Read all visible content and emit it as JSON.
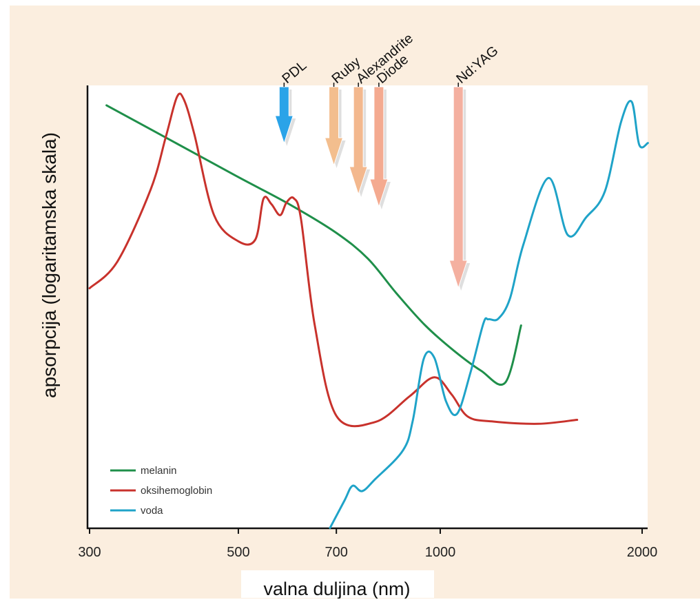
{
  "chart_data": {
    "type": "line",
    "ylabel": "apsorpcija (logaritamska skala)",
    "xlabel": "valna duljina (nm)",
    "x_scale": "log",
    "xlim": [
      300,
      2050
    ],
    "ylim": [
      0,
      100
    ],
    "y_scale": "log (unlabeled, relative)",
    "x_ticks": [
      300,
      500,
      700,
      1000,
      2000
    ],
    "grid": false,
    "legend_position": "bottom-left",
    "series": [
      {
        "name": "melanin",
        "color": "#1f8f4a",
        "x": [
          318,
          400,
          500,
          600,
          700,
          780,
          860,
          950,
          1050,
          1150,
          1250,
          1320
        ],
        "y": [
          95.5,
          87.3,
          79.3,
          72.9,
          66.7,
          60.9,
          53.1,
          45.8,
          40.0,
          35.6,
          32.9,
          45.8
        ]
      },
      {
        "name": "oksihemoglobin",
        "color": "#c8322c",
        "x": [
          300,
          330,
          370,
          390,
          405,
          415,
          430,
          460,
          500,
          530,
          545,
          560,
          577,
          590,
          605,
          620,
          650,
          700,
          800,
          900,
          980,
          1040,
          1100,
          1200,
          1400,
          1600
        ],
        "y": [
          54.2,
          60.2,
          76.5,
          88.5,
          97.4,
          96.7,
          88.9,
          70.7,
          64.8,
          65.2,
          74.4,
          73.2,
          70.7,
          73.6,
          74.5,
          69.8,
          45.8,
          25.4,
          24.0,
          29.8,
          34.1,
          30.2,
          25.2,
          24.1,
          23.6,
          24.5
        ]
      },
      {
        "name": "voda",
        "color": "#1fa3c8",
        "x": [
          685,
          720,
          740,
          765,
          800,
          880,
          910,
          945,
          980,
          1020,
          1060,
          1110,
          1160,
          1180,
          1220,
          1270,
          1330,
          1450,
          1550,
          1650,
          1760,
          1860,
          1930,
          1980,
          2040
        ],
        "y": [
          0.1,
          6.3,
          9.6,
          8.4,
          11.1,
          17.6,
          24.3,
          38.3,
          38.5,
          28.7,
          25.9,
          35.3,
          46.3,
          47.2,
          47.3,
          51.8,
          64.0,
          79.1,
          66.2,
          70.2,
          76.1,
          91.7,
          96.3,
          86.6,
          87.0
        ]
      }
    ],
    "annotations": [
      {
        "label": "PDL",
        "x": 585,
        "color": "#2aa3e8"
      },
      {
        "label": "Ruby",
        "x": 694,
        "color": "#f3be8e"
      },
      {
        "label": "Alexandrite",
        "x": 755,
        "color": "#f3b88e"
      },
      {
        "label": "Diode",
        "x": 810,
        "color": "#f4aa90"
      },
      {
        "label": "Nd:YAG",
        "x": 1064,
        "color": "#f4b0a0"
      }
    ]
  }
}
